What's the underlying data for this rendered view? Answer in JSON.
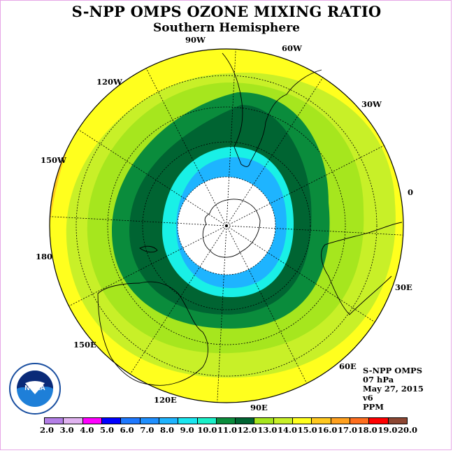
{
  "header": {
    "title": "S-NPP OMPS OZONE MIXING RATIO",
    "subtitle": "Southern Hemisphere"
  },
  "longitude_labels": {
    "w90": "90W",
    "w60": "60W",
    "w30": "30W",
    "e0": "0",
    "w120": "120W",
    "w150": "150W",
    "d180": "180",
    "e30": "30E",
    "e60": "60E",
    "e90": "90E",
    "e120": "120E",
    "e150": "150E"
  },
  "info": {
    "instrument": "S-NPP OMPS",
    "level": "07 hPa",
    "date": "May 27, 2015",
    "version": "v6",
    "units": "PPM"
  },
  "logo": {
    "text": "NOAA",
    "icon": "noaa-logo-icon"
  },
  "colorbar": {
    "ticks": [
      "2.0",
      "3.0",
      "4.0",
      "5.0",
      "6.0",
      "7.0",
      "8.0",
      "9.0",
      "10.0",
      "11.0",
      "12.0",
      "13.0",
      "14.0",
      "15.0",
      "16.0",
      "17.0",
      "18.0",
      "19.0",
      "20.0"
    ],
    "colors": [
      "#b37fe6",
      "#e0b3f0",
      "#ff00ff",
      "#0000ff",
      "#1e78ff",
      "#1e8fff",
      "#1eb4ff",
      "#19e6f0",
      "#19f0c8",
      "#0a8c3c",
      "#006432",
      "#a6e61e",
      "#c8f028",
      "#ffff1e",
      "#ffc81e",
      "#ffa01e",
      "#ff6e1e",
      "#ff0000",
      "#8c4632"
    ]
  },
  "map_colors": {
    "pole": "#ffffff",
    "ring_blue": "#1eb4ff",
    "ring_cyan": "#19f0e6",
    "ring_dkgreen": "#006432",
    "ring_green": "#0a8c3c",
    "ring_lgreen": "#a6e61e",
    "ring_ygreen": "#c8f028",
    "yellow": "#ffff1e",
    "orange": "#ffc81e"
  }
}
